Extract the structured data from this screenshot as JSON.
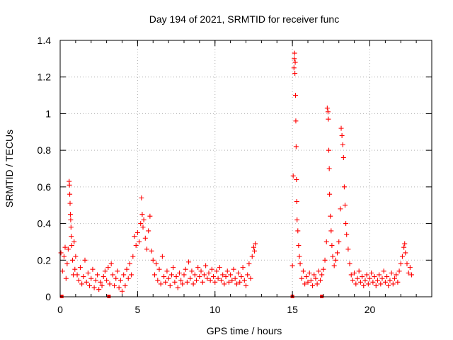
{
  "chart_data": {
    "type": "scatter",
    "title": "Day 194 of 2021, SRMTID for receiver func",
    "xlabel": "GPS time / hours",
    "ylabel": "SRMTID / TECUs",
    "xlim": [
      0,
      24
    ],
    "ylim": [
      0,
      1.4
    ],
    "xticks": [
      0,
      5,
      10,
      15,
      20
    ],
    "xtick_labels": [
      "0",
      "5",
      "10",
      "15",
      "20"
    ],
    "yticks": [
      0,
      0.2,
      0.4,
      0.6,
      0.8,
      1.0,
      1.2,
      1.4
    ],
    "ytick_labels": [
      "0",
      "0.2",
      "0.4",
      "0.6",
      "0.8",
      "1",
      "1.2",
      "1.4"
    ],
    "grid": true,
    "marker": "+",
    "marker_color": "#ff0000",
    "series": [
      {
        "name": "SRMTID",
        "points": [
          [
            0.05,
            0.24
          ],
          [
            0.15,
            0.14
          ],
          [
            0.25,
            0.22
          ],
          [
            0.32,
            0.27
          ],
          [
            0.38,
            0.1
          ],
          [
            0.45,
            0.18
          ],
          [
            0.52,
            0.26
          ],
          [
            0.58,
            0.63
          ],
          [
            0.6,
            0.61
          ],
          [
            0.62,
            0.56
          ],
          [
            0.64,
            0.51
          ],
          [
            0.66,
            0.45
          ],
          [
            0.68,
            0.42
          ],
          [
            0.7,
            0.38
          ],
          [
            0.72,
            0.33
          ],
          [
            0.75,
            0.28
          ],
          [
            0.8,
            0.2
          ],
          [
            0.85,
            0.12
          ],
          [
            0.9,
            0.3
          ],
          [
            0.95,
            0.15
          ],
          [
            1.0,
            0.22
          ],
          [
            1.1,
            0.12
          ],
          [
            1.2,
            0.09
          ],
          [
            1.3,
            0.16
          ],
          [
            1.4,
            0.07
          ],
          [
            1.5,
            0.11
          ],
          [
            1.6,
            0.2
          ],
          [
            1.7,
            0.08
          ],
          [
            1.8,
            0.13
          ],
          [
            1.9,
            0.06
          ],
          [
            2.0,
            0.1
          ],
          [
            2.1,
            0.15
          ],
          [
            2.2,
            0.05
          ],
          [
            2.3,
            0.09
          ],
          [
            2.4,
            0.12
          ],
          [
            2.5,
            0.04
          ],
          [
            2.6,
            0.08
          ],
          [
            2.7,
            0.06
          ],
          [
            2.8,
            0.11
          ],
          [
            2.9,
            0.14
          ],
          [
            3.0,
            0.09
          ],
          [
            3.1,
            0.16
          ],
          [
            3.2,
            0.07
          ],
          [
            3.3,
            0.18
          ],
          [
            3.4,
            0.12
          ],
          [
            3.5,
            0.06
          ],
          [
            3.6,
            0.1
          ],
          [
            3.7,
            0.14
          ],
          [
            3.8,
            0.05
          ],
          [
            3.9,
            0.09
          ],
          [
            4.0,
            0.03
          ],
          [
            4.1,
            0.12
          ],
          [
            4.2,
            0.06
          ],
          [
            4.3,
            0.15
          ],
          [
            4.4,
            0.1
          ],
          [
            4.5,
            0.18
          ],
          [
            4.6,
            0.12
          ],
          [
            4.7,
            0.22
          ],
          [
            4.8,
            0.33
          ],
          [
            4.9,
            0.28
          ],
          [
            5.0,
            0.35
          ],
          [
            5.1,
            0.3
          ],
          [
            5.2,
            0.4
          ],
          [
            5.25,
            0.54
          ],
          [
            5.3,
            0.45
          ],
          [
            5.35,
            0.38
          ],
          [
            5.4,
            0.42
          ],
          [
            5.5,
            0.32
          ],
          [
            5.6,
            0.26
          ],
          [
            5.7,
            0.36
          ],
          [
            5.8,
            0.44
          ],
          [
            5.9,
            0.25
          ],
          [
            6.0,
            0.2
          ],
          [
            6.1,
            0.12
          ],
          [
            6.2,
            0.18
          ],
          [
            6.3,
            0.09
          ],
          [
            6.4,
            0.15
          ],
          [
            6.5,
            0.07
          ],
          [
            6.6,
            0.22
          ],
          [
            6.7,
            0.11
          ],
          [
            6.8,
            0.08
          ],
          [
            6.9,
            0.14
          ],
          [
            7.0,
            0.1
          ],
          [
            7.1,
            0.06
          ],
          [
            7.2,
            0.12
          ],
          [
            7.3,
            0.16
          ],
          [
            7.4,
            0.08
          ],
          [
            7.5,
            0.11
          ],
          [
            7.6,
            0.05
          ],
          [
            7.7,
            0.13
          ],
          [
            7.8,
            0.09
          ],
          [
            7.9,
            0.07
          ],
          [
            8.0,
            0.12
          ],
          [
            8.1,
            0.15
          ],
          [
            8.2,
            0.08
          ],
          [
            8.3,
            0.19
          ],
          [
            8.4,
            0.1
          ],
          [
            8.5,
            0.14
          ],
          [
            8.6,
            0.07
          ],
          [
            8.7,
            0.12
          ],
          [
            8.8,
            0.09
          ],
          [
            8.9,
            0.16
          ],
          [
            9.0,
            0.11
          ],
          [
            9.1,
            0.14
          ],
          [
            9.2,
            0.08
          ],
          [
            9.3,
            0.12
          ],
          [
            9.4,
            0.17
          ],
          [
            9.5,
            0.1
          ],
          [
            9.6,
            0.13
          ],
          [
            9.7,
            0.09
          ],
          [
            9.8,
            0.15
          ],
          [
            9.9,
            0.11
          ],
          [
            10.0,
            0.08
          ],
          [
            10.1,
            0.14
          ],
          [
            10.2,
            0.1
          ],
          [
            10.3,
            0.16
          ],
          [
            10.4,
            0.09
          ],
          [
            10.5,
            0.12
          ],
          [
            10.6,
            0.07
          ],
          [
            10.7,
            0.11
          ],
          [
            10.8,
            0.14
          ],
          [
            10.9,
            0.08
          ],
          [
            11.0,
            0.12
          ],
          [
            11.1,
            0.09
          ],
          [
            11.2,
            0.15
          ],
          [
            11.3,
            0.1
          ],
          [
            11.4,
            0.07
          ],
          [
            11.5,
            0.13
          ],
          [
            11.6,
            0.08
          ],
          [
            11.7,
            0.11
          ],
          [
            11.8,
            0.16
          ],
          [
            11.9,
            0.09
          ],
          [
            12.0,
            0.06
          ],
          [
            12.1,
            0.12
          ],
          [
            12.2,
            0.18
          ],
          [
            12.3,
            0.1
          ],
          [
            12.4,
            0.22
          ],
          [
            12.5,
            0.27
          ],
          [
            12.55,
            0.25
          ],
          [
            12.6,
            0.29
          ],
          [
            15.0,
            0.17
          ],
          [
            15.05,
            0.66
          ],
          [
            15.1,
            1.25
          ],
          [
            15.12,
            1.3
          ],
          [
            15.14,
            1.33
          ],
          [
            15.16,
            1.22
          ],
          [
            15.18,
            1.28
          ],
          [
            15.2,
            1.1
          ],
          [
            15.22,
            0.96
          ],
          [
            15.24,
            0.82
          ],
          [
            15.26,
            0.64
          ],
          [
            15.28,
            0.52
          ],
          [
            15.3,
            0.42
          ],
          [
            15.35,
            0.36
          ],
          [
            15.4,
            0.28
          ],
          [
            15.45,
            0.22
          ],
          [
            15.5,
            0.18
          ],
          [
            15.6,
            0.1
          ],
          [
            15.7,
            0.14
          ],
          [
            15.8,
            0.07
          ],
          [
            15.9,
            0.11
          ],
          [
            16.0,
            0.08
          ],
          [
            16.1,
            0.13
          ],
          [
            16.2,
            0.09
          ],
          [
            16.3,
            0.06
          ],
          [
            16.4,
            0.12
          ],
          [
            16.5,
            0.1
          ],
          [
            16.6,
            0.07
          ],
          [
            16.7,
            0.14
          ],
          [
            16.8,
            0.09
          ],
          [
            16.9,
            0.12
          ],
          [
            17.0,
            0.15
          ],
          [
            17.1,
            0.2
          ],
          [
            17.2,
            0.3
          ],
          [
            17.25,
            1.03
          ],
          [
            17.3,
            1.01
          ],
          [
            17.32,
            0.97
          ],
          [
            17.35,
            0.8
          ],
          [
            17.38,
            0.7
          ],
          [
            17.4,
            0.56
          ],
          [
            17.45,
            0.44
          ],
          [
            17.5,
            0.36
          ],
          [
            17.55,
            0.28
          ],
          [
            17.6,
            0.22
          ],
          [
            17.7,
            0.17
          ],
          [
            17.8,
            0.2
          ],
          [
            17.9,
            0.24
          ],
          [
            18.0,
            0.3
          ],
          [
            18.1,
            0.48
          ],
          [
            18.15,
            0.92
          ],
          [
            18.2,
            0.88
          ],
          [
            18.25,
            0.83
          ],
          [
            18.3,
            0.76
          ],
          [
            18.35,
            0.6
          ],
          [
            18.4,
            0.5
          ],
          [
            18.45,
            0.4
          ],
          [
            18.5,
            0.34
          ],
          [
            18.6,
            0.26
          ],
          [
            18.7,
            0.18
          ],
          [
            18.8,
            0.12
          ],
          [
            18.9,
            0.09
          ],
          [
            19.0,
            0.13
          ],
          [
            19.1,
            0.07
          ],
          [
            19.2,
            0.1
          ],
          [
            19.3,
            0.14
          ],
          [
            19.4,
            0.08
          ],
          [
            19.5,
            0.11
          ],
          [
            19.6,
            0.06
          ],
          [
            19.7,
            0.09
          ],
          [
            19.8,
            0.12
          ],
          [
            19.9,
            0.07
          ],
          [
            20.0,
            0.1
          ],
          [
            20.1,
            0.13
          ],
          [
            20.2,
            0.08
          ],
          [
            20.3,
            0.11
          ],
          [
            20.4,
            0.06
          ],
          [
            20.5,
            0.09
          ],
          [
            20.6,
            0.12
          ],
          [
            20.7,
            0.07
          ],
          [
            20.8,
            0.1
          ],
          [
            20.9,
            0.14
          ],
          [
            21.0,
            0.08
          ],
          [
            21.1,
            0.11
          ],
          [
            21.2,
            0.06
          ],
          [
            21.3,
            0.09
          ],
          [
            21.4,
            0.13
          ],
          [
            21.5,
            0.07
          ],
          [
            21.6,
            0.1
          ],
          [
            21.7,
            0.12
          ],
          [
            21.8,
            0.08
          ],
          [
            21.9,
            0.14
          ],
          [
            22.0,
            0.18
          ],
          [
            22.1,
            0.22
          ],
          [
            22.2,
            0.27
          ],
          [
            22.25,
            0.29
          ],
          [
            22.3,
            0.24
          ],
          [
            22.4,
            0.18
          ],
          [
            22.5,
            0.13
          ],
          [
            22.6,
            0.16
          ],
          [
            22.7,
            0.12
          ]
        ]
      }
    ],
    "gap_markers": [
      0.1,
      3.15,
      15.0,
      16.9
    ]
  }
}
